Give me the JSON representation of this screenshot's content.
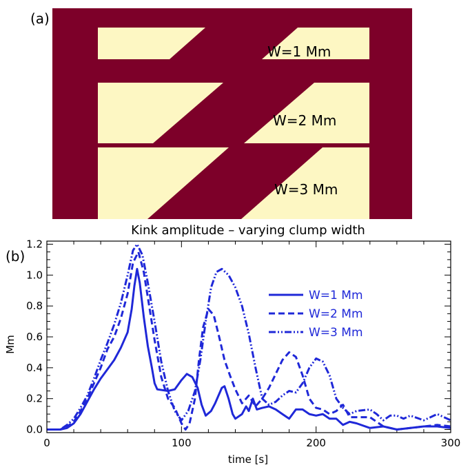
{
  "panel_a": {
    "label": "(a)",
    "background_color": "#7d0029",
    "clump_color": "#fdf7c3",
    "width_labels": [
      "W=1 Mm",
      "W=2 Mm",
      "W=3 Mm"
    ]
  },
  "chart_data": {
    "type": "line",
    "panel_label": "(b)",
    "title": "Kink amplitude – varying clump width",
    "xlabel": "time [s]",
    "ylabel": "Mm",
    "xlim": [
      0,
      300
    ],
    "ylim": [
      -0.02,
      1.22
    ],
    "xticks": [
      "0",
      "100",
      "200",
      "300"
    ],
    "yticks": [
      "0.0",
      "0.2",
      "0.4",
      "0.6",
      "0.8",
      "1.0",
      "1.2"
    ],
    "legend_position": "right",
    "line_color": "#1f28d8",
    "series": [
      {
        "name": "W=1 Mm",
        "style": "solid",
        "points": [
          [
            0,
            0.0
          ],
          [
            10,
            0.0
          ],
          [
            15,
            0.01
          ],
          [
            20,
            0.04
          ],
          [
            25,
            0.1
          ],
          [
            30,
            0.18
          ],
          [
            35,
            0.26
          ],
          [
            40,
            0.33
          ],
          [
            45,
            0.39
          ],
          [
            50,
            0.45
          ],
          [
            55,
            0.53
          ],
          [
            60,
            0.63
          ],
          [
            63,
            0.78
          ],
          [
            65,
            0.93
          ],
          [
            67,
            1.04
          ],
          [
            69,
            0.95
          ],
          [
            72,
            0.73
          ],
          [
            75,
            0.54
          ],
          [
            78,
            0.4
          ],
          [
            80,
            0.3
          ],
          [
            82,
            0.26
          ],
          [
            90,
            0.25
          ],
          [
            95,
            0.26
          ],
          [
            100,
            0.32
          ],
          [
            104,
            0.36
          ],
          [
            108,
            0.34
          ],
          [
            112,
            0.27
          ],
          [
            115,
            0.16
          ],
          [
            118,
            0.09
          ],
          [
            122,
            0.12
          ],
          [
            125,
            0.17
          ],
          [
            130,
            0.27
          ],
          [
            132,
            0.28
          ],
          [
            135,
            0.2
          ],
          [
            138,
            0.1
          ],
          [
            140,
            0.07
          ],
          [
            145,
            0.1
          ],
          [
            148,
            0.15
          ],
          [
            150,
            0.12
          ],
          [
            153,
            0.2
          ],
          [
            156,
            0.13
          ],
          [
            160,
            0.14
          ],
          [
            165,
            0.15
          ],
          [
            170,
            0.13
          ],
          [
            175,
            0.1
          ],
          [
            180,
            0.07
          ],
          [
            185,
            0.13
          ],
          [
            190,
            0.13
          ],
          [
            195,
            0.1
          ],
          [
            200,
            0.09
          ],
          [
            205,
            0.1
          ],
          [
            210,
            0.07
          ],
          [
            215,
            0.07
          ],
          [
            220,
            0.03
          ],
          [
            225,
            0.05
          ],
          [
            230,
            0.04
          ],
          [
            240,
            0.01
          ],
          [
            250,
            0.02
          ],
          [
            260,
            0.0
          ],
          [
            270,
            0.01
          ],
          [
            280,
            0.02
          ],
          [
            290,
            0.02
          ],
          [
            300,
            0.01
          ]
        ]
      },
      {
        "name": "W=2 Mm",
        "style": "dashed",
        "points": [
          [
            0,
            0.0
          ],
          [
            10,
            0.0
          ],
          [
            15,
            0.02
          ],
          [
            20,
            0.05
          ],
          [
            25,
            0.12
          ],
          [
            30,
            0.2
          ],
          [
            35,
            0.3
          ],
          [
            40,
            0.4
          ],
          [
            45,
            0.52
          ],
          [
            50,
            0.6
          ],
          [
            55,
            0.72
          ],
          [
            60,
            0.88
          ],
          [
            64,
            1.08
          ],
          [
            68,
            1.15
          ],
          [
            72,
            1.02
          ],
          [
            76,
            0.8
          ],
          [
            80,
            0.58
          ],
          [
            85,
            0.34
          ],
          [
            90,
            0.2
          ],
          [
            95,
            0.14
          ],
          [
            100,
            0.04
          ],
          [
            103,
            0.0
          ],
          [
            106,
            0.04
          ],
          [
            110,
            0.2
          ],
          [
            113,
            0.45
          ],
          [
            116,
            0.66
          ],
          [
            120,
            0.78
          ],
          [
            124,
            0.74
          ],
          [
            128,
            0.6
          ],
          [
            132,
            0.45
          ],
          [
            136,
            0.35
          ],
          [
            140,
            0.26
          ],
          [
            145,
            0.17
          ],
          [
            150,
            0.22
          ],
          [
            155,
            0.15
          ],
          [
            160,
            0.2
          ],
          [
            165,
            0.27
          ],
          [
            170,
            0.36
          ],
          [
            175,
            0.45
          ],
          [
            180,
            0.5
          ],
          [
            185,
            0.47
          ],
          [
            190,
            0.35
          ],
          [
            195,
            0.2
          ],
          [
            200,
            0.14
          ],
          [
            205,
            0.13
          ],
          [
            210,
            0.1
          ],
          [
            215,
            0.12
          ],
          [
            220,
            0.16
          ],
          [
            225,
            0.08
          ],
          [
            230,
            0.08
          ],
          [
            240,
            0.08
          ],
          [
            250,
            0.02
          ],
          [
            260,
            0.0
          ],
          [
            270,
            0.01
          ],
          [
            280,
            0.02
          ],
          [
            290,
            0.03
          ],
          [
            300,
            0.02
          ]
        ]
      },
      {
        "name": "W=3 Mm",
        "style": "dashdotdot",
        "points": [
          [
            0,
            0.0
          ],
          [
            10,
            0.0
          ],
          [
            15,
            0.03
          ],
          [
            20,
            0.07
          ],
          [
            25,
            0.14
          ],
          [
            30,
            0.22
          ],
          [
            35,
            0.33
          ],
          [
            40,
            0.45
          ],
          [
            45,
            0.56
          ],
          [
            50,
            0.68
          ],
          [
            55,
            0.82
          ],
          [
            60,
            1.0
          ],
          [
            64,
            1.16
          ],
          [
            67,
            1.2
          ],
          [
            71,
            1.13
          ],
          [
            75,
            0.95
          ],
          [
            80,
            0.7
          ],
          [
            85,
            0.44
          ],
          [
            90,
            0.25
          ],
          [
            95,
            0.12
          ],
          [
            100,
            0.06
          ],
          [
            105,
            0.12
          ],
          [
            110,
            0.25
          ],
          [
            114,
            0.45
          ],
          [
            118,
            0.7
          ],
          [
            122,
            0.92
          ],
          [
            126,
            1.02
          ],
          [
            130,
            1.04
          ],
          [
            135,
            1.0
          ],
          [
            140,
            0.92
          ],
          [
            145,
            0.8
          ],
          [
            150,
            0.62
          ],
          [
            155,
            0.4
          ],
          [
            160,
            0.2
          ],
          [
            165,
            0.16
          ],
          [
            170,
            0.18
          ],
          [
            175,
            0.22
          ],
          [
            180,
            0.25
          ],
          [
            185,
            0.24
          ],
          [
            190,
            0.3
          ],
          [
            195,
            0.4
          ],
          [
            200,
            0.46
          ],
          [
            205,
            0.44
          ],
          [
            210,
            0.35
          ],
          [
            215,
            0.2
          ],
          [
            220,
            0.14
          ],
          [
            225,
            0.1
          ],
          [
            230,
            0.12
          ],
          [
            240,
            0.13
          ],
          [
            245,
            0.1
          ],
          [
            250,
            0.06
          ],
          [
            255,
            0.09
          ],
          [
            260,
            0.09
          ],
          [
            265,
            0.07
          ],
          [
            270,
            0.09
          ],
          [
            280,
            0.06
          ],
          [
            290,
            0.1
          ],
          [
            295,
            0.08
          ],
          [
            300,
            0.06
          ]
        ]
      }
    ]
  }
}
